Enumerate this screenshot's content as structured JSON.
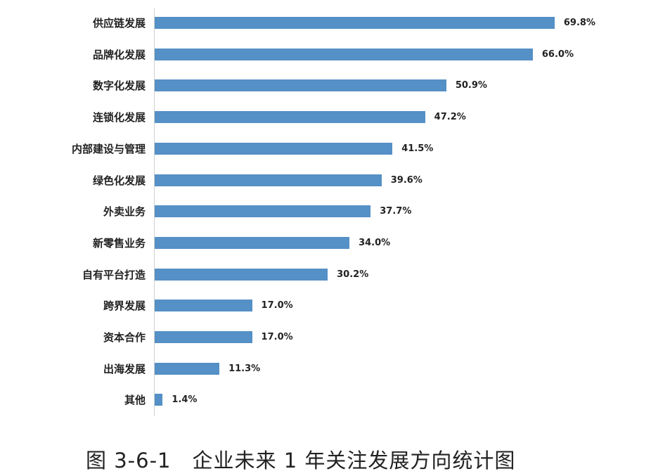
{
  "chart_data": {
    "type": "bar",
    "orientation": "horizontal",
    "title": "图 3-6-1　企业未来 1 年关注发展方向统计图",
    "xlabel": "",
    "ylabel": "",
    "grid": false,
    "legend": null,
    "categories": [
      "供应链发展",
      "品牌化发展",
      "数字化发展",
      "连锁化发展",
      "内部建设与管理",
      "绿色化发展",
      "外卖业务",
      "新零售业务",
      "自有平台打造",
      "跨界发展",
      "资本合作",
      "出海发展",
      "其他"
    ],
    "values": [
      69.8,
      66.0,
      50.9,
      47.2,
      41.5,
      39.6,
      37.7,
      34.0,
      30.2,
      17.0,
      17.0,
      11.3,
      1.4
    ],
    "value_labels": [
      "69.8%",
      "66.0%",
      "50.9%",
      "47.2%",
      "41.5%",
      "39.6%",
      "37.7%",
      "34.0%",
      "30.2%",
      "17.0%",
      "17.0%",
      "11.3%",
      "1.4%"
    ],
    "unit": "%",
    "bar_color": "#5590c6"
  },
  "caption": "图 3-6-1　企业未来 1 年关注发展方向统计图"
}
